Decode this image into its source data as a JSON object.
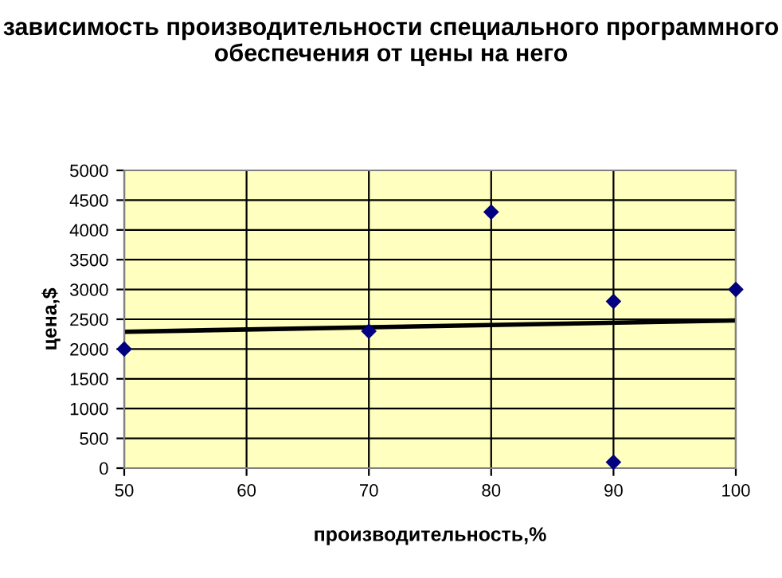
{
  "chart_data": {
    "type": "scatter",
    "title": "зависимость производительности специального программного обеспечения от цены на него",
    "xlabel": "производительность,%",
    "ylabel": "цена,$",
    "series": [
      {
        "color": "#000080",
        "marker": "diamond",
        "x": [
          50,
          70,
          80,
          90,
          90,
          100
        ],
        "values": [
          2000,
          2300,
          4300,
          2800,
          100,
          3000
        ]
      },
      {
        "type": "line",
        "color": "#000000",
        "marker": "none",
        "x": [
          50,
          100
        ],
        "values": [
          2290,
          2480
        ]
      }
    ],
    "xlim": [
      50,
      100
    ],
    "xticks": [
      50,
      60,
      70,
      80,
      90,
      100
    ],
    "ylim": [
      0,
      5000
    ],
    "yticks": [
      0,
      500,
      1000,
      1500,
      2000,
      2500,
      3000,
      3500,
      4000,
      4500,
      5000
    ],
    "grid": true,
    "legend": false
  }
}
